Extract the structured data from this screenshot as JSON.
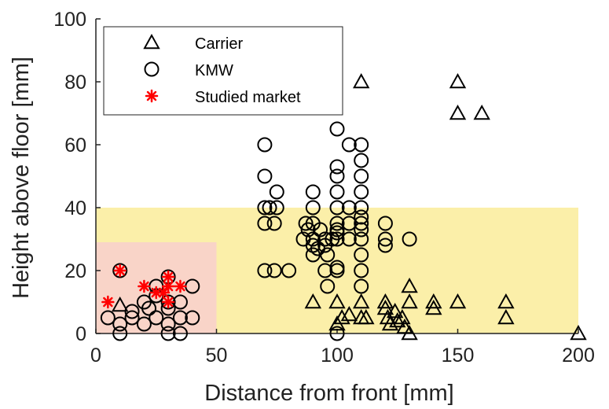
{
  "chart_data": {
    "type": "scatter",
    "xlabel": "Distance from front [mm]",
    "ylabel": "Height above floor [mm]",
    "xlim": [
      0,
      200
    ],
    "ylim": [
      0,
      100
    ],
    "x_ticks": [
      "0",
      "50",
      "100",
      "150",
      "200"
    ],
    "y_ticks": [
      "0",
      "20",
      "40",
      "60",
      "80",
      "100"
    ],
    "grid": false,
    "legend_position": "top-left",
    "regions": [
      {
        "x": [
          0,
          200
        ],
        "y": [
          0,
          40
        ],
        "color": "#fbefa9"
      },
      {
        "x": [
          0,
          50
        ],
        "y": [
          0,
          29
        ],
        "color": "#f9d4c8"
      }
    ],
    "series": [
      {
        "name": "Carrier",
        "marker": "triangle",
        "color": "#000000",
        "points": [
          [
            10,
            9
          ],
          [
            90,
            10
          ],
          [
            100,
            10
          ],
          [
            100,
            3
          ],
          [
            102,
            5
          ],
          [
            105,
            6
          ],
          [
            110,
            80
          ],
          [
            110,
            5
          ],
          [
            112,
            5
          ],
          [
            110,
            10
          ],
          [
            120,
            10
          ],
          [
            120,
            8
          ],
          [
            121,
            5
          ],
          [
            122,
            3
          ],
          [
            124,
            7
          ],
          [
            125,
            4
          ],
          [
            127,
            5
          ],
          [
            128,
            2
          ],
          [
            130,
            15
          ],
          [
            130,
            10
          ],
          [
            130,
            0
          ],
          [
            140,
            10
          ],
          [
            140,
            8
          ],
          [
            150,
            80
          ],
          [
            150,
            70
          ],
          [
            150,
            10
          ],
          [
            160,
            70
          ],
          [
            170,
            10
          ],
          [
            170,
            5
          ],
          [
            200,
            0
          ]
        ]
      },
      {
        "name": "KMW",
        "marker": "circle",
        "color": "#000000",
        "points": [
          [
            5,
            5
          ],
          [
            10,
            0
          ],
          [
            10,
            3
          ],
          [
            10,
            20
          ],
          [
            15,
            5
          ],
          [
            15,
            7
          ],
          [
            20,
            3
          ],
          [
            20,
            10
          ],
          [
            22,
            8
          ],
          [
            25,
            5
          ],
          [
            25,
            12
          ],
          [
            25,
            15
          ],
          [
            30,
            0
          ],
          [
            30,
            3
          ],
          [
            30,
            8
          ],
          [
            30,
            10
          ],
          [
            30,
            18
          ],
          [
            35,
            0
          ],
          [
            35,
            5
          ],
          [
            35,
            10
          ],
          [
            40,
            5
          ],
          [
            40,
            15
          ],
          [
            70,
            60
          ],
          [
            70,
            50
          ],
          [
            70,
            40
          ],
          [
            70,
            35
          ],
          [
            70,
            20
          ],
          [
            72,
            40
          ],
          [
            74,
            35
          ],
          [
            74,
            20
          ],
          [
            75,
            45
          ],
          [
            75,
            40
          ],
          [
            80,
            20
          ],
          [
            86,
            30
          ],
          [
            87,
            35
          ],
          [
            88,
            33
          ],
          [
            90,
            45
          ],
          [
            90,
            40
          ],
          [
            90,
            35
          ],
          [
            90,
            30
          ],
          [
            90,
            28
          ],
          [
            90,
            25
          ],
          [
            92,
            27
          ],
          [
            93,
            33
          ],
          [
            95,
            30
          ],
          [
            95,
            28
          ],
          [
            95,
            20
          ],
          [
            96,
            25
          ],
          [
            96,
            15
          ],
          [
            98,
            30
          ],
          [
            100,
            65
          ],
          [
            100,
            53
          ],
          [
            100,
            50
          ],
          [
            100,
            45
          ],
          [
            100,
            40
          ],
          [
            100,
            35
          ],
          [
            100,
            33
          ],
          [
            100,
            32
          ],
          [
            100,
            30
          ],
          [
            100,
            21
          ],
          [
            100,
            20
          ],
          [
            100,
            0
          ],
          [
            105,
            60
          ],
          [
            105,
            40
          ],
          [
            105,
            35
          ],
          [
            105,
            30
          ],
          [
            110,
            60
          ],
          [
            110,
            55
          ],
          [
            110,
            50
          ],
          [
            110,
            45
          ],
          [
            110,
            40
          ],
          [
            110,
            37
          ],
          [
            110,
            35
          ],
          [
            110,
            33
          ],
          [
            110,
            30
          ],
          [
            110,
            25
          ],
          [
            110,
            20
          ],
          [
            110,
            15
          ],
          [
            120,
            35
          ],
          [
            120,
            30
          ],
          [
            120,
            28
          ],
          [
            130,
            30
          ]
        ]
      },
      {
        "name": "Studied market",
        "marker": "asterisk",
        "color": "#ff0000",
        "points": [
          [
            5,
            10
          ],
          [
            10,
            20
          ],
          [
            20,
            15
          ],
          [
            25,
            13
          ],
          [
            28,
            13
          ],
          [
            30,
            18
          ],
          [
            30,
            15
          ],
          [
            30,
            10
          ],
          [
            35,
            15
          ]
        ]
      }
    ]
  }
}
